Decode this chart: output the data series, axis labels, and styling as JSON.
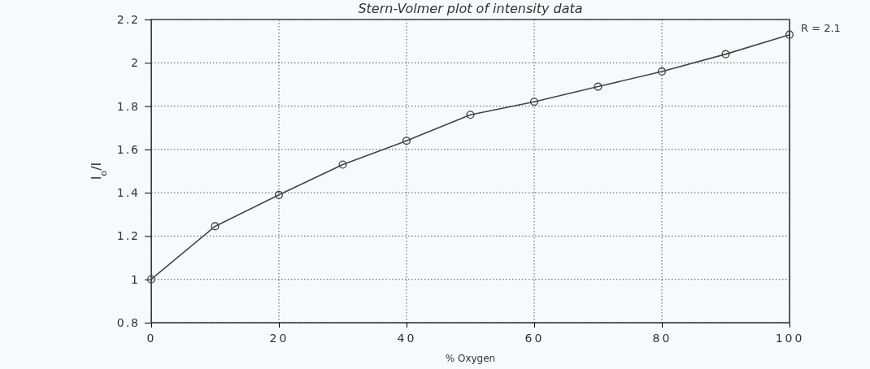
{
  "chart_data": {
    "type": "line",
    "title": "Stern-Volmer plot of intensity data",
    "xlabel": "% Oxygen",
    "ylabel": "I$_{o}$/I",
    "x": [
      0,
      10,
      20,
      30,
      40,
      50,
      60,
      70,
      80,
      90,
      100
    ],
    "series": [
      {
        "color": "#444444",
        "values": [
          1.0,
          1.245,
          1.39,
          1.53,
          1.64,
          1.76,
          1.82,
          1.89,
          1.96,
          2.04,
          2.13
        ]
      }
    ],
    "xlim": [
      0,
      100
    ],
    "xticks": [
      0,
      20,
      40,
      60,
      80,
      100
    ],
    "ylim": [
      0.8,
      2.2
    ],
    "yticks": [
      {
        "value": 0.8,
        "label": "0.8"
      },
      1,
      {
        "value": 1.2,
        "label": "1.2"
      },
      {
        "value": 1.4,
        "label": "1.4"
      },
      {
        "value": 1.6,
        "label": "1.6"
      },
      {
        "value": 1.8,
        "label": "1.8"
      },
      2,
      {
        "value": 2.2,
        "label": "2.2"
      }
    ],
    "grid": true,
    "marker": "circle",
    "line_style": "solid",
    "annotations": [
      {
        "text": "R = 2.1",
        "x": 100,
        "y": 2.13
      }
    ]
  }
}
